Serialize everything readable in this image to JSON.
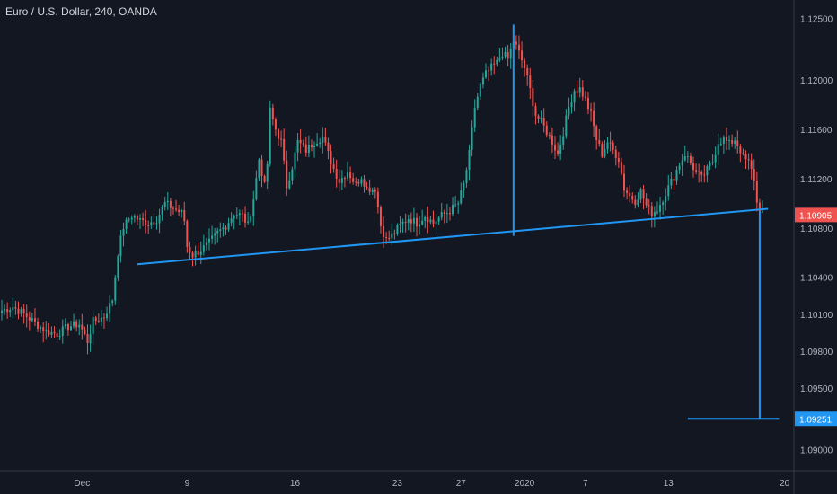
{
  "chart_title": "Euro / U.S. Dollar, 240, OANDA",
  "colors": {
    "background": "#131722",
    "up": "#26a69a",
    "down": "#ef5350",
    "drawing": "#2196f3",
    "axis_text": "#b2b5be",
    "axis_line": "#363a45",
    "last_price_badge": "#ef5350",
    "target_badge": "#2196f3"
  },
  "chart_data": {
    "type": "candlestick",
    "title": "Euro / U.S. Dollar, 240, OANDA",
    "x_tick_labels": [
      "Dec",
      "9",
      "16",
      "23",
      "27",
      "2020",
      "7",
      "13",
      "20"
    ],
    "y_tick_labels": [
      "1.12500",
      "1.12000",
      "1.11600",
      "1.11200",
      "1.10800",
      "1.10400",
      "1.10100",
      "1.09800",
      "1.09500",
      "1.09000"
    ],
    "ylim": [
      1.0883,
      1.1265
    ],
    "last_price": "1.10905",
    "target_price": "1.09251",
    "ohlc_anchors": [
      [
        0,
        1.1013
      ],
      [
        4,
        1.1016
      ],
      [
        8,
        1.101
      ],
      [
        12,
        1.1003
      ],
      [
        16,
        1.0996
      ],
      [
        20,
        1.0994
      ],
      [
        24,
        1.1
      ],
      [
        28,
        1.1002
      ],
      [
        31,
        1.0988
      ],
      [
        33,
        1.1004
      ],
      [
        37,
        1.1008
      ],
      [
        40,
        1.1022
      ],
      [
        42,
        1.106
      ],
      [
        44,
        1.1081
      ],
      [
        47,
        1.109
      ],
      [
        50,
        1.1086
      ],
      [
        53,
        1.1084
      ],
      [
        56,
        1.1087
      ],
      [
        59,
        1.11
      ],
      [
        62,
        1.1096
      ],
      [
        65,
        1.1092
      ],
      [
        66,
        1.1086
      ],
      [
        67,
        1.1065
      ],
      [
        69,
        1.1058
      ],
      [
        72,
        1.1062
      ],
      [
        75,
        1.1068
      ],
      [
        78,
        1.1076
      ],
      [
        81,
        1.1082
      ],
      [
        84,
        1.1092
      ],
      [
        87,
        1.109
      ],
      [
        89,
        1.1082
      ],
      [
        91,
        1.1104
      ],
      [
        93,
        1.1136
      ],
      [
        95,
        1.1114
      ],
      [
        96,
        1.1132
      ],
      [
        97,
        1.1175
      ],
      [
        99,
        1.116
      ],
      [
        101,
        1.115
      ],
      [
        103,
        1.1114
      ],
      [
        105,
        1.113
      ],
      [
        107,
        1.115
      ],
      [
        110,
        1.1143
      ],
      [
        113,
        1.115
      ],
      [
        116,
        1.1154
      ],
      [
        118,
        1.114
      ],
      [
        120,
        1.1128
      ],
      [
        122,
        1.1118
      ],
      [
        125,
        1.1126
      ],
      [
        128,
        1.1115
      ],
      [
        130,
        1.1122
      ],
      [
        132,
        1.1112
      ],
      [
        135,
        1.1112
      ],
      [
        137,
        1.1082
      ],
      [
        139,
        1.107
      ],
      [
        141,
        1.1074
      ],
      [
        144,
        1.1082
      ],
      [
        147,
        1.1088
      ],
      [
        150,
        1.1084
      ],
      [
        153,
        1.109
      ],
      [
        156,
        1.1084
      ],
      [
        159,
        1.109
      ],
      [
        162,
        1.1094
      ],
      [
        165,
        1.11
      ],
      [
        167,
        1.1115
      ],
      [
        169,
        1.114
      ],
      [
        171,
        1.1178
      ],
      [
        173,
        1.1195
      ],
      [
        175,
        1.1205
      ],
      [
        177,
        1.121
      ],
      [
        179,
        1.1214
      ],
      [
        181,
        1.1222
      ],
      [
        183,
        1.1217
      ],
      [
        185,
        1.1232
      ],
      [
        187,
        1.1222
      ],
      [
        189,
        1.121
      ],
      [
        191,
        1.1192
      ],
      [
        193,
        1.1172
      ],
      [
        195,
        1.1166
      ],
      [
        197,
        1.1158
      ],
      [
        199,
        1.115
      ],
      [
        201,
        1.114
      ],
      [
        203,
        1.1158
      ],
      [
        205,
        1.1178
      ],
      [
        207,
        1.1192
      ],
      [
        209,
        1.1193
      ],
      [
        211,
        1.1184
      ],
      [
        213,
        1.1172
      ],
      [
        215,
        1.1152
      ],
      [
        217,
        1.114
      ],
      [
        219,
        1.115
      ],
      [
        221,
        1.1143
      ],
      [
        223,
        1.1136
      ],
      [
        225,
        1.1112
      ],
      [
        227,
        1.1106
      ],
      [
        229,
        1.1102
      ],
      [
        231,
        1.111
      ],
      [
        233,
        1.1098
      ],
      [
        235,
        1.1092
      ],
      [
        237,
        1.1095
      ],
      [
        239,
        1.1104
      ],
      [
        241,
        1.1113
      ],
      [
        243,
        1.1122
      ],
      [
        245,
        1.1132
      ],
      [
        247,
        1.114
      ],
      [
        249,
        1.1133
      ],
      [
        251,
        1.1125
      ],
      [
        253,
        1.112
      ],
      [
        255,
        1.1127
      ],
      [
        257,
        1.1134
      ],
      [
        259,
        1.115
      ],
      [
        261,
        1.1152
      ],
      [
        263,
        1.1148
      ],
      [
        265,
        1.1152
      ],
      [
        267,
        1.1143
      ],
      [
        268,
        1.1137
      ],
      [
        270,
        1.1133
      ],
      [
        272,
        1.112
      ],
      [
        273,
        1.11
      ],
      [
        275,
        1.1092
      ]
    ],
    "annotations": {
      "neckline": [
        [
          49,
          1.10505
        ],
        [
          277,
          1.10955
        ]
      ],
      "pattern_height": [
        [
          185,
          1.1245
        ],
        [
          185,
          1.10735
        ]
      ],
      "projection": [
        [
          274,
          1.10935
        ],
        [
          274,
          1.09251
        ]
      ],
      "target_line": [
        [
          248,
          1.09251
        ],
        [
          281,
          1.09251
        ]
      ]
    }
  }
}
